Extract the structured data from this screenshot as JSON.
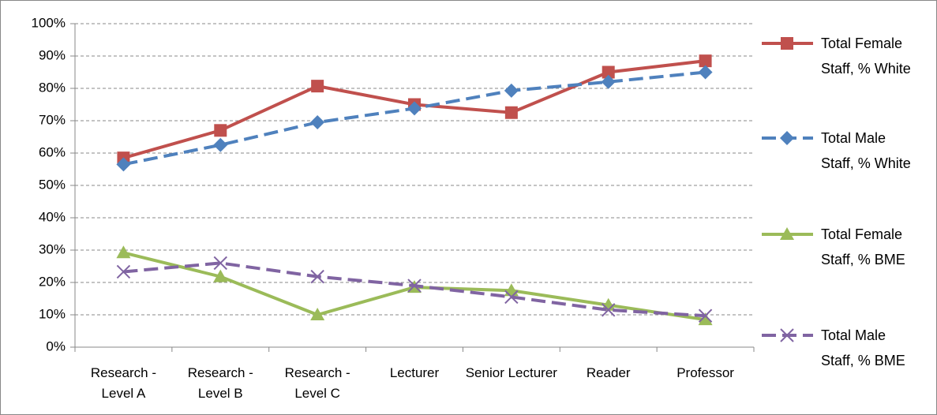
{
  "chart_data": {
    "type": "line",
    "categories": [
      "Research - Level A",
      "Research - Level B",
      "Research - Level C",
      "Lecturer",
      "Senior Lecturer",
      "Reader",
      "Professor"
    ],
    "series": [
      {
        "name": "Total Female Staff, % White",
        "color": "#c0504d",
        "dash": false,
        "marker": "square",
        "values": [
          58.5,
          67,
          80.7,
          75,
          72.5,
          85,
          88.5
        ]
      },
      {
        "name": "Total Male Staff, % White",
        "color": "#4f81bd",
        "dash": true,
        "marker": "diamond",
        "values": [
          56.5,
          62.5,
          69.5,
          73.8,
          79.3,
          82,
          85
        ]
      },
      {
        "name": "Total Female Staff, % BME",
        "color": "#9bbb59",
        "dash": false,
        "marker": "triangle",
        "values": [
          29.2,
          21.8,
          10,
          18.5,
          17.5,
          13,
          8.5
        ]
      },
      {
        "name": "Total Male Staff, % BME",
        "color": "#8064a2",
        "dash": true,
        "marker": "x",
        "values": [
          23.3,
          26,
          21.8,
          19,
          15.5,
          11.5,
          9.7
        ]
      }
    ],
    "ylim": [
      0,
      100
    ],
    "yticks": [
      {
        "value": 0,
        "label": "0%"
      },
      {
        "value": 10,
        "label": "10%"
      },
      {
        "value": 20,
        "label": "20%"
      },
      {
        "value": 30,
        "label": "30%"
      },
      {
        "value": 40,
        "label": "40%"
      },
      {
        "value": 50,
        "label": "50%"
      },
      {
        "value": 60,
        "label": "60%"
      },
      {
        "value": 70,
        "label": "70%"
      },
      {
        "value": 80,
        "label": "80%"
      },
      {
        "value": 90,
        "label": "90%"
      },
      {
        "value": 100,
        "label": "100%"
      }
    ],
    "grid": true,
    "legend": "right"
  }
}
